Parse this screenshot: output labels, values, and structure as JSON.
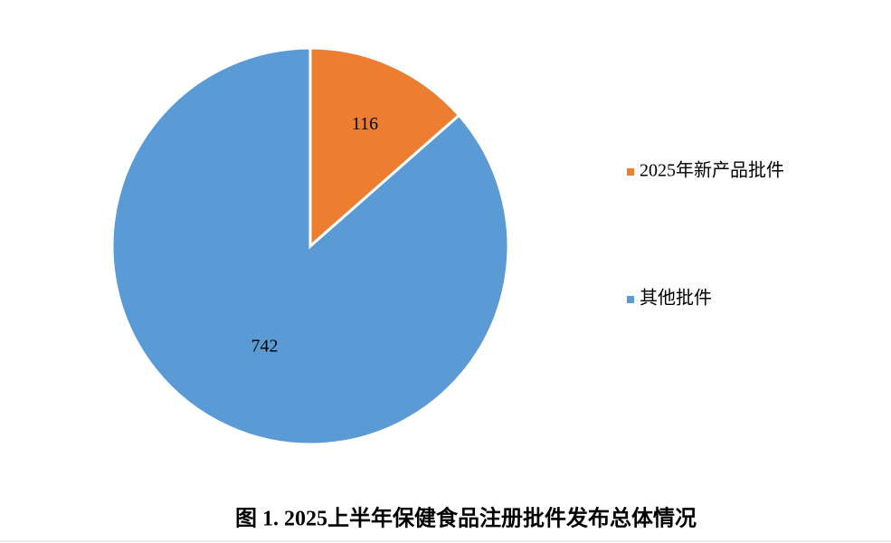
{
  "chart_data": {
    "type": "pie",
    "title": "图 1. 2025上半年保健食品注册批件发布总体情况",
    "categories": [
      "2025年新产品批件",
      "其他批件"
    ],
    "values": [
      116,
      742
    ],
    "colors": [
      "#ed7d31",
      "#5b9bd5"
    ],
    "legend": "right"
  }
}
